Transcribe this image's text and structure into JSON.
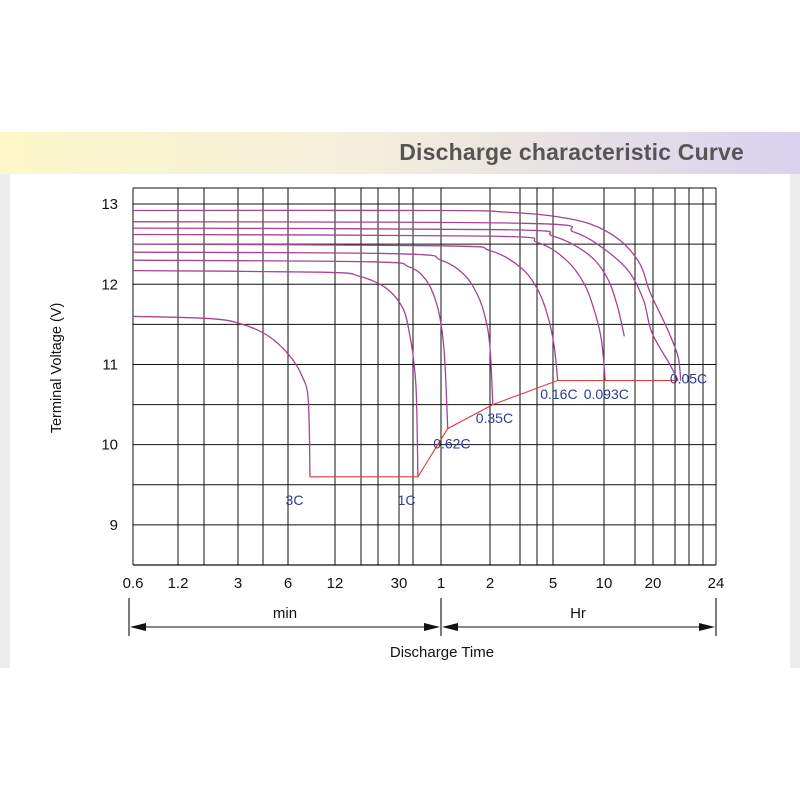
{
  "header": {
    "title": "Discharge characteristic Curve"
  },
  "chart_data": {
    "type": "line",
    "ylabel": "Terminal Voltage  (V)",
    "xlabel": "Discharge Time",
    "x_sections": [
      {
        "label": "min"
      },
      {
        "label": "Hr"
      }
    ],
    "y_ticks": [
      "9",
      "10",
      "11",
      "12",
      "13"
    ],
    "ylim": [
      8.5,
      13.2
    ],
    "x_ticks": [
      {
        "label": "0.6",
        "minutes": 0.6
      },
      {
        "label": "1.2",
        "minutes": 1.2
      },
      {
        "label": "3",
        "minutes": 3
      },
      {
        "label": "6",
        "minutes": 6
      },
      {
        "label": "12",
        "minutes": 12
      },
      {
        "label": "30",
        "minutes": 30
      },
      {
        "label": "1",
        "minutes": 60
      },
      {
        "label": "2",
        "minutes": 120
      },
      {
        "label": "5",
        "minutes": 300
      },
      {
        "label": "10",
        "minutes": 600
      },
      {
        "label": "20",
        "minutes": 1200
      },
      {
        "label": "24",
        "minutes": 1440
      }
    ],
    "cutoff_line": [
      [
        8.3,
        9.6
      ],
      [
        41,
        9.6
      ],
      [
        66,
        10.2
      ],
      [
        125,
        10.5
      ],
      [
        320,
        10.8
      ],
      [
        1290,
        10.8
      ]
    ],
    "series": [
      {
        "name": "3C",
        "points": [
          [
            0.6,
            11.6
          ],
          [
            2,
            11.57
          ],
          [
            3.2,
            11.5
          ],
          [
            4.6,
            11.35
          ],
          [
            6.2,
            11.1
          ],
          [
            7.4,
            10.85
          ],
          [
            8.1,
            10.55
          ],
          [
            8.3,
            9.6
          ]
        ]
      },
      {
        "name": "1C",
        "points": [
          [
            0.6,
            12.17
          ],
          [
            10,
            12.15
          ],
          [
            17,
            12.1
          ],
          [
            25,
            11.95
          ],
          [
            32,
            11.7
          ],
          [
            36,
            11.35
          ],
          [
            38.5,
            11.0
          ],
          [
            40,
            10.6
          ],
          [
            41,
            9.6
          ]
        ]
      },
      {
        "name": "0.62C",
        "points": [
          [
            0.6,
            12.3
          ],
          [
            20,
            12.28
          ],
          [
            35,
            12.22
          ],
          [
            47,
            12.05
          ],
          [
            56,
            11.75
          ],
          [
            61,
            11.4
          ],
          [
            63.5,
            11.0
          ],
          [
            66,
            10.2
          ]
        ]
      },
      {
        "name": "0.35C",
        "points": [
          [
            0.6,
            12.4
          ],
          [
            30,
            12.38
          ],
          [
            60,
            12.3
          ],
          [
            85,
            12.1
          ],
          [
            104,
            11.8
          ],
          [
            116,
            11.45
          ],
          [
            121,
            11.1
          ],
          [
            125,
            10.5
          ]
        ]
      },
      {
        "name": "0.16C",
        "points": [
          [
            0.6,
            12.5
          ],
          [
            60,
            12.48
          ],
          [
            120,
            12.42
          ],
          [
            190,
            12.2
          ],
          [
            245,
            11.9
          ],
          [
            283,
            11.55
          ],
          [
            306,
            11.2
          ],
          [
            320,
            10.8
          ]
        ]
      },
      {
        "name": "0.093C",
        "points": [
          [
            0.6,
            12.62
          ],
          [
            120,
            12.6
          ],
          [
            240,
            12.52
          ],
          [
            360,
            12.3
          ],
          [
            460,
            12.0
          ],
          [
            530,
            11.65
          ],
          [
            580,
            11.3
          ],
          [
            610,
            10.8
          ]
        ]
      },
      {
        "name": "0.05C",
        "points": [
          [
            0.6,
            12.78
          ],
          [
            200,
            12.76
          ],
          [
            400,
            12.65
          ],
          [
            620,
            12.42
          ],
          [
            860,
            12.15
          ],
          [
            1050,
            11.8
          ],
          [
            1180,
            11.4
          ],
          [
            1260,
            11.0
          ],
          [
            1290,
            10.8
          ]
        ]
      },
      {
        "name": "",
        "points": [
          [
            0.6,
            12.7
          ],
          [
            150,
            12.68
          ],
          [
            300,
            12.6
          ],
          [
            480,
            12.38
          ],
          [
            620,
            12.1
          ],
          [
            720,
            11.75
          ],
          [
            800,
            11.35
          ]
        ]
      },
      {
        "name": "",
        "points": [
          [
            0.6,
            12.92
          ],
          [
            60,
            12.92
          ],
          [
            150,
            12.9
          ],
          [
            300,
            12.85
          ],
          [
            500,
            12.75
          ],
          [
            750,
            12.55
          ],
          [
            1000,
            12.25
          ],
          [
            1150,
            11.9
          ],
          [
            1250,
            11.45
          ],
          [
            1290,
            11.1
          ],
          [
            1300,
            10.8
          ]
        ]
      }
    ],
    "series_labels": [
      {
        "name": "3C",
        "at": [
          6.6,
          9.25
        ]
      },
      {
        "name": "1C",
        "at": [
          34,
          9.25
        ]
      },
      {
        "name": "0.62C",
        "at": [
          70,
          9.95
        ]
      },
      {
        "name": "0.35C",
        "at": [
          128,
          10.27
        ]
      },
      {
        "name": "0.16C",
        "at": [
          325,
          10.57
        ]
      },
      {
        "name": "0.093C",
        "at": [
          620,
          10.57
        ]
      },
      {
        "name": "0.05C",
        "at": [
          1330,
          10.76
        ]
      }
    ],
    "colors": {
      "curve": "#a8438f",
      "cutoff": "#e03a3a",
      "label": "#2a3d8f",
      "grid": "#111111"
    },
    "grid": true
  }
}
